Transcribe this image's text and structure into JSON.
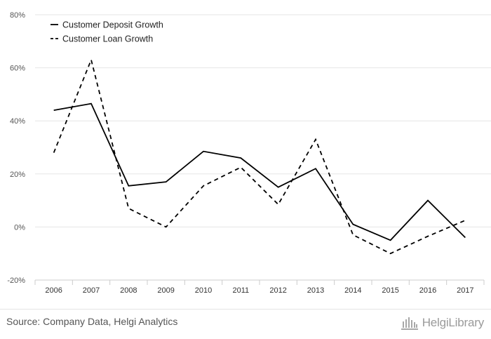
{
  "chart_data": {
    "type": "line",
    "title": "",
    "xlabel": "",
    "ylabel": "",
    "categories": [
      "2006",
      "2007",
      "2008",
      "2009",
      "2010",
      "2011",
      "2012",
      "2013",
      "2014",
      "2015",
      "2016",
      "2017"
    ],
    "ylim": [
      -20,
      80
    ],
    "yticks": [
      -20,
      0,
      20,
      40,
      60,
      80
    ],
    "ytick_labels": [
      "-20%",
      "0%",
      "20%",
      "40%",
      "60%",
      "80%"
    ],
    "grid": true,
    "legend_position": "top-left",
    "series": [
      {
        "name": "Customer Deposit Growth",
        "style": "solid",
        "color": "#000000",
        "values": [
          44,
          46.5,
          15.5,
          17,
          28.5,
          26,
          15,
          22,
          1,
          -5,
          10,
          -4
        ]
      },
      {
        "name": "Customer Loan Growth",
        "style": "dashed",
        "color": "#000000",
        "values": [
          28,
          63,
          7,
          0,
          15.5,
          22.5,
          8.5,
          33,
          -3,
          -10,
          -3.5,
          2.5
        ]
      }
    ]
  },
  "footer": {
    "source": "Source: Company Data, Helgi Analytics",
    "brand_name": "HelgiLibrary",
    "brand_icon": "building-columns-icon"
  }
}
